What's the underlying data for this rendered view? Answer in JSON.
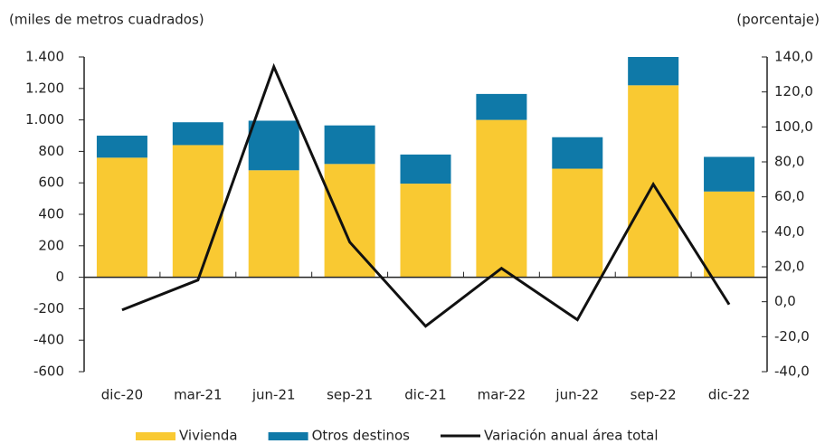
{
  "chart_data": {
    "type": "bar-line",
    "y_label": "(miles de metros cuadrados)",
    "y2_label": "(porcentaje)",
    "categories": [
      "dic-20",
      "mar-21",
      "jun-21",
      "sep-21",
      "dic-21",
      "mar-22",
      "jun-22",
      "sep-22",
      "dic-22"
    ],
    "series": [
      {
        "name": "Vivienda",
        "color": "#f9c932",
        "kind": "bar",
        "values": [
          760,
          840,
          680,
          720,
          595,
          1000,
          690,
          1220,
          545
        ]
      },
      {
        "name": "Otros destinos",
        "color": "#0f79a8",
        "kind": "bar",
        "values": [
          140,
          145,
          315,
          245,
          185,
          165,
          200,
          180,
          220
        ]
      },
      {
        "name": "Variación anual área total",
        "color": "#111111",
        "kind": "line",
        "axis": "y2",
        "values": [
          -4.7,
          12.4,
          134.4,
          34.1,
          -14.0,
          19.1,
          -10.3,
          67.2,
          -1.6
        ]
      }
    ],
    "ylim": [
      -600,
      1400
    ],
    "yticks": [
      -600,
      -400,
      -200,
      0,
      200,
      400,
      600,
      800,
      {
        "value": 1000,
        "label": "1.000"
      },
      {
        "value": 1200,
        "label": "1.200"
      },
      {
        "value": 1400,
        "label": "1.400"
      }
    ],
    "y2lim": [
      -40,
      140
    ],
    "y2ticks": [
      {
        "value": -40,
        "label": "-40,0"
      },
      {
        "value": -20,
        "label": "-20,0"
      },
      {
        "value": 0,
        "label": "0,0"
      },
      {
        "value": 20,
        "label": "20,0"
      },
      {
        "value": 40,
        "label": "40,0"
      },
      {
        "value": 60,
        "label": "60,0"
      },
      {
        "value": 80,
        "label": "80,0"
      },
      {
        "value": 100,
        "label": "100,0"
      },
      {
        "value": 120,
        "label": "120,0"
      },
      {
        "value": 140,
        "label": "140,0"
      }
    ]
  }
}
